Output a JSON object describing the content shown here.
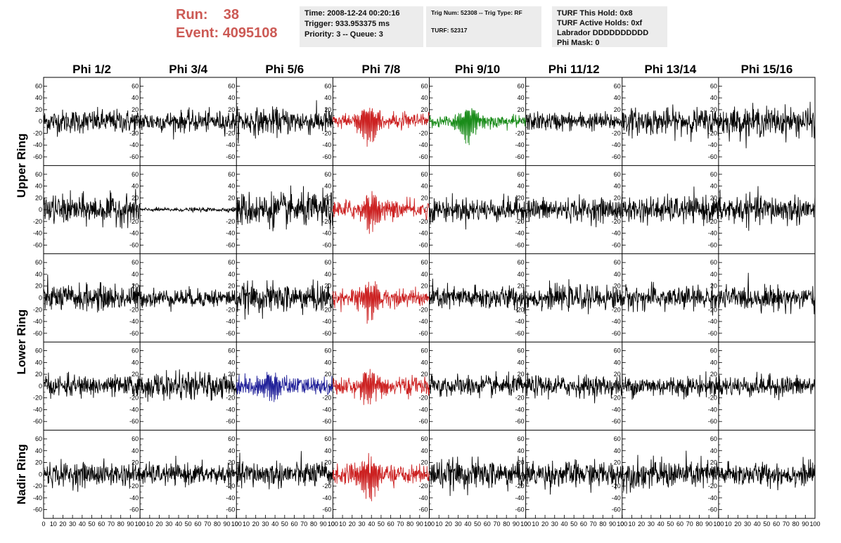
{
  "header": {
    "run_label": "Run:",
    "run_value": "38",
    "event_label": "Event:",
    "event_value": "4095108"
  },
  "info": {
    "time": "Time: 2008-12-24 00:20:16",
    "trigger": "Trigger: 933.953375 ms",
    "priority": "Priority: 3 -- Queue: 3",
    "trig_line": "Trig Num: 52308 -- Trig Type: RF",
    "turf_line": "TURF: 52317",
    "turf_hold": "TURF This Hold: 0x8",
    "turf_active": "TURF Active Holds: 0xf",
    "labrador": "Labrador DDDDDDDDDD",
    "phi_mask": "Phi Mask: 0"
  },
  "colors": {
    "trace_default": "#000000",
    "trace_red": "#cc2222",
    "trace_green": "#1a8c1a",
    "trace_blue": "#22229a",
    "header_red": "#cc5a55"
  },
  "chart_data": {
    "type": "line",
    "title": "",
    "columns": [
      "Phi 1/2",
      "Phi 3/4",
      "Phi 5/6",
      "Phi 7/8",
      "Phi 9/10",
      "Phi 11/12",
      "Phi 13/14",
      "Phi 15/16"
    ],
    "row_labels": [
      {
        "label": "Upper Ring",
        "spans_rows": [
          0,
          1
        ]
      },
      {
        "label": "Lower Ring",
        "spans_rows": [
          2,
          3
        ]
      },
      {
        "label": "Nadir Ring",
        "spans_rows": [
          4
        ]
      }
    ],
    "rows": 5,
    "xlim": [
      0,
      100
    ],
    "ylim": [
      -70,
      70
    ],
    "x_tick_labels": [
      "0",
      "10",
      "20",
      "30",
      "40",
      "50",
      "60",
      "70",
      "80",
      "90",
      "100"
    ],
    "y_tick_labels": [
      "-60",
      "-40",
      "-20",
      "0",
      "20",
      "40",
      "60"
    ],
    "grid": false,
    "panels": [
      {
        "row": 0,
        "col": 0,
        "color": "black",
        "amplitude": 18,
        "pulse": null
      },
      {
        "row": 0,
        "col": 1,
        "color": "black",
        "amplitude": 16,
        "pulse": null
      },
      {
        "row": 0,
        "col": 2,
        "color": "black",
        "amplitude": 20,
        "pulse": null
      },
      {
        "row": 0,
        "col": 3,
        "color": "red",
        "amplitude": 12,
        "pulse": {
          "center": 38,
          "peak": 55
        }
      },
      {
        "row": 0,
        "col": 4,
        "color": "green",
        "amplitude": 10,
        "pulse": {
          "center": 40,
          "peak": 50
        }
      },
      {
        "row": 0,
        "col": 5,
        "color": "black",
        "amplitude": 14,
        "pulse": null
      },
      {
        "row": 0,
        "col": 6,
        "color": "black",
        "amplitude": 20,
        "pulse": null
      },
      {
        "row": 0,
        "col": 7,
        "color": "black",
        "amplitude": 22,
        "pulse": null
      },
      {
        "row": 1,
        "col": 0,
        "color": "black",
        "amplitude": 22,
        "pulse": null
      },
      {
        "row": 1,
        "col": 1,
        "color": "black",
        "amplitude": 3,
        "pulse": null
      },
      {
        "row": 1,
        "col": 2,
        "color": "black",
        "amplitude": 26,
        "pulse": null
      },
      {
        "row": 1,
        "col": 3,
        "color": "red",
        "amplitude": 14,
        "pulse": {
          "center": 40,
          "peak": 50
        }
      },
      {
        "row": 1,
        "col": 4,
        "color": "black",
        "amplitude": 18,
        "pulse": null
      },
      {
        "row": 1,
        "col": 5,
        "color": "black",
        "amplitude": 18,
        "pulse": null
      },
      {
        "row": 1,
        "col": 6,
        "color": "black",
        "amplitude": 20,
        "pulse": null
      },
      {
        "row": 1,
        "col": 7,
        "color": "black",
        "amplitude": 22,
        "pulse": null
      },
      {
        "row": 2,
        "col": 0,
        "color": "black",
        "amplitude": 20,
        "pulse": null
      },
      {
        "row": 2,
        "col": 1,
        "color": "black",
        "amplitude": 14,
        "pulse": null
      },
      {
        "row": 2,
        "col": 2,
        "color": "black",
        "amplitude": 22,
        "pulse": null
      },
      {
        "row": 2,
        "col": 3,
        "color": "red",
        "amplitude": 14,
        "pulse": {
          "center": 38,
          "peak": 50
        }
      },
      {
        "row": 2,
        "col": 4,
        "color": "black",
        "amplitude": 18,
        "pulse": null
      },
      {
        "row": 2,
        "col": 5,
        "color": "black",
        "amplitude": 18,
        "pulse": null
      },
      {
        "row": 2,
        "col": 6,
        "color": "black",
        "amplitude": 18,
        "pulse": null
      },
      {
        "row": 2,
        "col": 7,
        "color": "black",
        "amplitude": 18,
        "pulse": null
      },
      {
        "row": 3,
        "col": 0,
        "color": "black",
        "amplitude": 16,
        "pulse": null
      },
      {
        "row": 3,
        "col": 1,
        "color": "black",
        "amplitude": 20,
        "pulse": null
      },
      {
        "row": 3,
        "col": 2,
        "color": "blue",
        "amplitude": 14,
        "pulse": {
          "center": 35,
          "peak": 38
        }
      },
      {
        "row": 3,
        "col": 3,
        "color": "red",
        "amplitude": 14,
        "pulse": {
          "center": 40,
          "peak": 40
        }
      },
      {
        "row": 3,
        "col": 4,
        "color": "black",
        "amplitude": 16,
        "pulse": null
      },
      {
        "row": 3,
        "col": 5,
        "color": "black",
        "amplitude": 16,
        "pulse": null
      },
      {
        "row": 3,
        "col": 6,
        "color": "black",
        "amplitude": 16,
        "pulse": null
      },
      {
        "row": 3,
        "col": 7,
        "color": "black",
        "amplitude": 16,
        "pulse": null
      },
      {
        "row": 4,
        "col": 0,
        "color": "black",
        "amplitude": 18,
        "pulse": null
      },
      {
        "row": 4,
        "col": 1,
        "color": "black",
        "amplitude": 16,
        "pulse": null
      },
      {
        "row": 4,
        "col": 2,
        "color": "black",
        "amplitude": 20,
        "pulse": null
      },
      {
        "row": 4,
        "col": 3,
        "color": "red",
        "amplitude": 14,
        "pulse": {
          "center": 38,
          "peak": 55
        }
      },
      {
        "row": 4,
        "col": 4,
        "color": "black",
        "amplitude": 22,
        "pulse": null
      },
      {
        "row": 4,
        "col": 5,
        "color": "black",
        "amplitude": 20,
        "pulse": null
      },
      {
        "row": 4,
        "col": 6,
        "color": "black",
        "amplitude": 22,
        "pulse": null
      },
      {
        "row": 4,
        "col": 7,
        "color": "black",
        "amplitude": 18,
        "pulse": null
      }
    ]
  }
}
